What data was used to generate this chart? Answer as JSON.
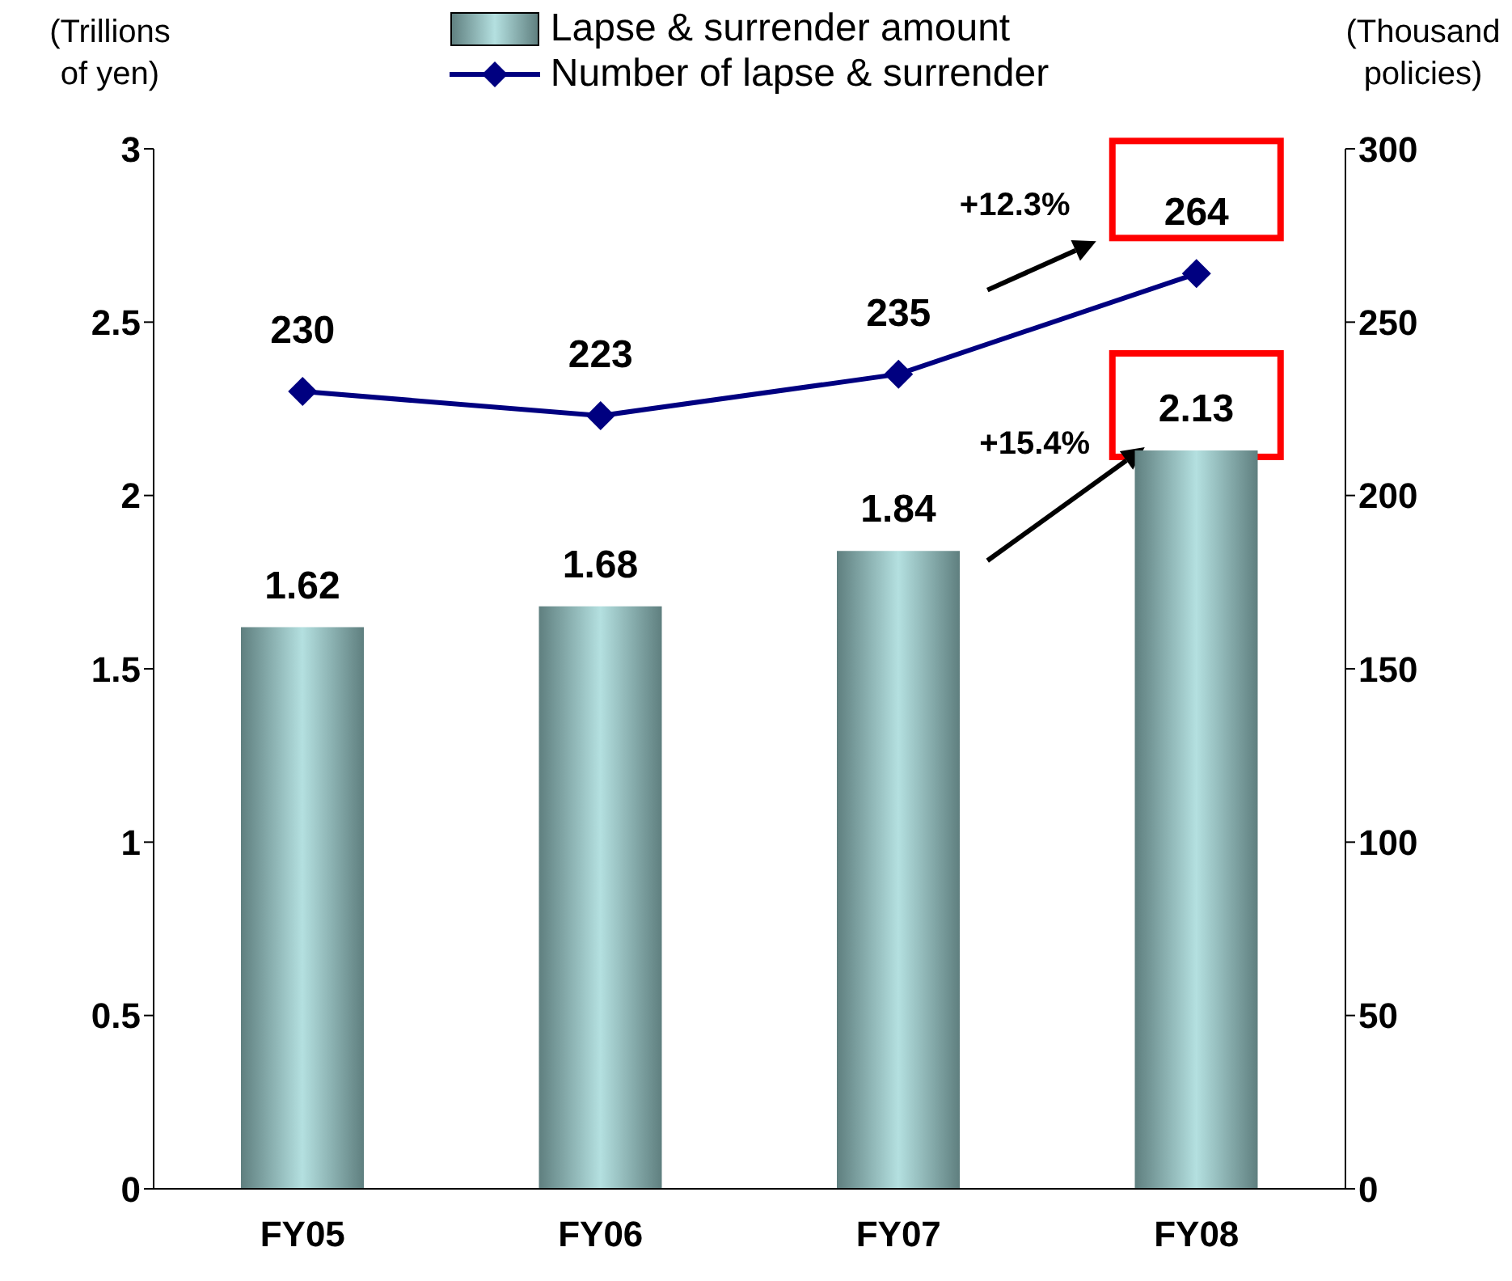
{
  "chart_data": {
    "type": "bar",
    "ylabel": "(Trillions\nof yen)",
    "y2label": "(Thousand\npolicies)",
    "categories": [
      "FY05",
      "FY06",
      "FY07",
      "FY08"
    ],
    "series": [
      {
        "name": "Lapse & surrender amount",
        "color": "#b4e0e0",
        "values": [
          1.62,
          1.68,
          1.84,
          2.13
        ]
      },
      {
        "name": "Number of lapse & surrender",
        "type": "line",
        "axis": "y2",
        "color": "#000080",
        "marker": "diamond",
        "values": [
          230,
          223,
          235,
          264
        ]
      }
    ],
    "ylim": [
      0,
      3
    ],
    "yticks": [
      0,
      0.5,
      1,
      1.5,
      2,
      2.5,
      3
    ],
    "y2lim": [
      0,
      300
    ],
    "y2ticks": [
      0,
      50,
      100,
      150,
      200,
      250,
      300
    ],
    "data_labels": true,
    "legend": "top",
    "annotations": [
      "+12.3%",
      "+15.4%"
    ]
  }
}
